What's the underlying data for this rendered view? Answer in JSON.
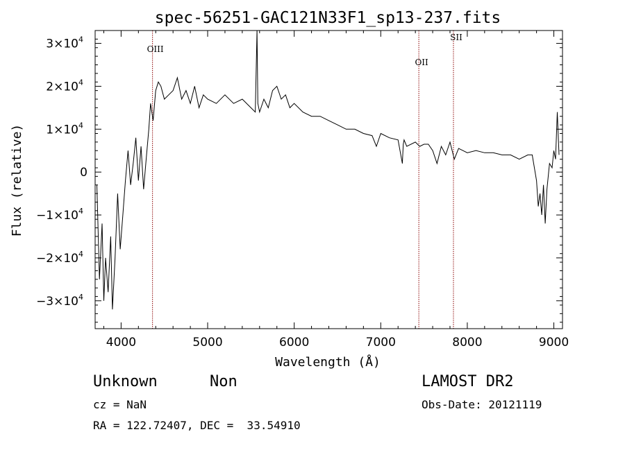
{
  "chart_data": {
    "type": "line",
    "title": "spec-56251-GAC121N33F1_sp13-237.fits",
    "xlabel": "Wavelength (Å)",
    "ylabel": "Flux (relative)",
    "xlim": [
      3700,
      9100
    ],
    "ylim": [
      -36500,
      33000
    ],
    "x_ticks": [
      4000,
      5000,
      6000,
      7000,
      8000,
      9000
    ],
    "y_ticks": [
      {
        "value": 30000,
        "mant": "3×10",
        "exp": "4"
      },
      {
        "value": 20000,
        "mant": "2×10",
        "exp": "4"
      },
      {
        "value": 10000,
        "mant": "1×10",
        "exp": "4"
      },
      {
        "value": 0,
        "mant": "0",
        "exp": ""
      },
      {
        "value": -10000,
        "mant": "−1×10",
        "exp": "4"
      },
      {
        "value": -20000,
        "mant": "−2×10",
        "exp": "4"
      },
      {
        "value": -30000,
        "mant": "−3×10",
        "exp": "4"
      }
    ],
    "line_color": "#000000",
    "marker_color": "#8b0000",
    "lines": [
      {
        "label": "OIII",
        "x": 4363
      },
      {
        "label": "OII",
        "x": 7440
      },
      {
        "label": "SII",
        "x": 7840
      }
    ],
    "series": [
      {
        "x": [
          3720,
          3750,
          3780,
          3800,
          3820,
          3850,
          3880,
          3900,
          3930,
          3960,
          3990,
          4020,
          4050,
          4080,
          4110,
          4140,
          4170,
          4200,
          4230,
          4260,
          4290,
          4320,
          4340,
          4370,
          4400,
          4430,
          4460,
          4500,
          4550,
          4600,
          4650,
          4700,
          4750,
          4800,
          4850,
          4900,
          4950,
          5000,
          5100,
          5200,
          5300,
          5400,
          5500,
          5550,
          5570,
          5580,
          5600,
          5650,
          5700,
          5750,
          5800,
          5850,
          5900,
          5950,
          6000,
          6100,
          6200,
          6300,
          6400,
          6500,
          6600,
          6700,
          6800,
          6900,
          6950,
          7000,
          7100,
          7200,
          7250,
          7260,
          7270,
          7300,
          7400,
          7450,
          7500,
          7550,
          7600,
          7650,
          7700,
          7750,
          7800,
          7850,
          7900,
          7950,
          8000,
          8100,
          8200,
          8300,
          8400,
          8500,
          8600,
          8700,
          8750,
          8800,
          8820,
          8840,
          8860,
          8880,
          8900,
          8920,
          8950,
          8980,
          9000,
          9020,
          9040,
          9060
        ],
        "y": [
          -3000,
          -25000,
          -12000,
          -30000,
          -20000,
          -28000,
          -15000,
          -32000,
          -20000,
          -5000,
          -18000,
          -10000,
          -2000,
          5000,
          -3000,
          2000,
          8000,
          -2000,
          6000,
          -4000,
          3000,
          10000,
          16000,
          12000,
          19000,
          21000,
          20000,
          17000,
          18000,
          19000,
          22000,
          17000,
          19000,
          16000,
          20000,
          15000,
          18000,
          17000,
          16000,
          18000,
          16000,
          17000,
          15000,
          14000,
          33000,
          16000,
          14000,
          17000,
          15000,
          19000,
          20000,
          17000,
          18000,
          15000,
          16000,
          14000,
          13000,
          13000,
          12000,
          11000,
          10000,
          10000,
          9000,
          8500,
          6000,
          9000,
          8000,
          7500,
          2000,
          6500,
          7500,
          6000,
          7000,
          6000,
          6500,
          6500,
          5000,
          2000,
          6000,
          4000,
          7000,
          3000,
          5500,
          5000,
          4500,
          5000,
          4500,
          4500,
          4000,
          4000,
          3000,
          4000,
          4000,
          -2000,
          -8000,
          -5000,
          -10000,
          -3000,
          -12000,
          -4000,
          2000,
          1000,
          5000,
          3000,
          14000,
          4000
        ]
      }
    ]
  },
  "info": {
    "object_class": "Unknown",
    "subclass": "Non",
    "survey": "LAMOST DR2",
    "cz": "cz = NaN",
    "obs_date": "Obs-Date: 20121119",
    "radec": "RA = 122.72407, DEC =  33.54910"
  }
}
